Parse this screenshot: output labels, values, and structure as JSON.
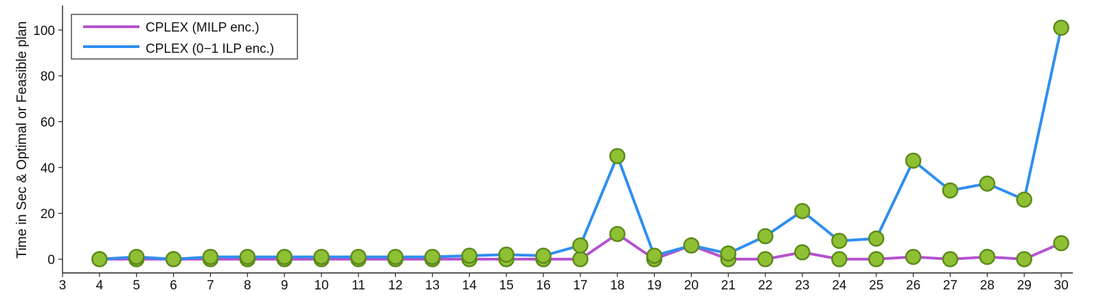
{
  "chart_data": {
    "type": "line",
    "title": "",
    "xlabel": "",
    "ylabel": "Time in Sec & Optimal or Feasible plan",
    "xlim": [
      3,
      30
    ],
    "ylim": [
      -6,
      111
    ],
    "x_ticks": [
      3,
      4,
      5,
      6,
      7,
      8,
      9,
      10,
      11,
      12,
      13,
      14,
      15,
      16,
      17,
      18,
      19,
      20,
      21,
      22,
      23,
      24,
      25,
      26,
      27,
      28,
      29,
      30
    ],
    "y_ticks": [
      0,
      20,
      40,
      60,
      80,
      100
    ],
    "x": [
      4,
      5,
      6,
      7,
      8,
      9,
      10,
      11,
      12,
      13,
      14,
      15,
      16,
      17,
      18,
      19,
      20,
      21,
      22,
      23,
      24,
      25,
      26,
      27,
      28,
      29,
      30
    ],
    "series": [
      {
        "name": "CPLEX (MILP enc.)",
        "color": "#b552cf",
        "values": [
          0,
          0,
          0,
          0,
          0,
          0,
          0,
          0,
          0,
          0,
          0,
          0,
          0,
          0,
          11,
          0,
          6,
          0,
          0,
          3,
          0,
          0,
          1,
          0,
          1,
          0,
          7
        ]
      },
      {
        "name": "CPLEX (0−1 ILP enc.)",
        "color": "#2f8ef0",
        "values": [
          0,
          1,
          0,
          1,
          1,
          1,
          1,
          1,
          1,
          1,
          1.5,
          2,
          1.5,
          6,
          45,
          1.5,
          6,
          2.5,
          10,
          21,
          8,
          9,
          43,
          30,
          33,
          26,
          101
        ]
      }
    ],
    "marker": {
      "fill": "#8fc034",
      "stroke": "#5b8a1a"
    },
    "legend_position": "top-left",
    "grid": false
  }
}
